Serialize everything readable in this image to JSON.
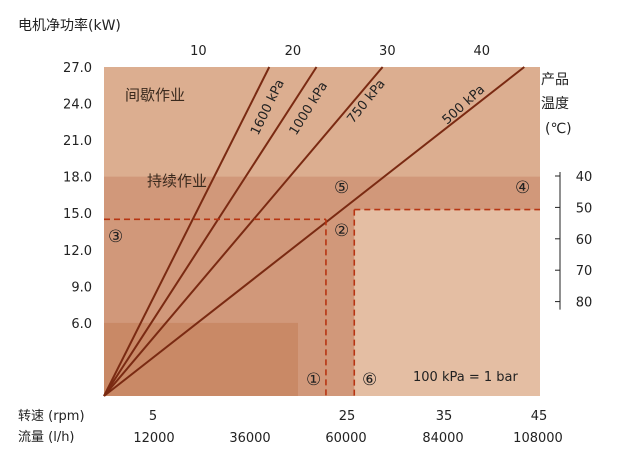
{
  "title": "电机净功率(kW)",
  "right_axis_title": [
    "产品",
    "温度",
    "(℃)"
  ],
  "zones": {
    "intermittent": "间歇作业",
    "continuous": "持续作业"
  },
  "note": "100 kPa = 1 bar",
  "bottom_axes": [
    {
      "label": "转速 (rpm)",
      "ticks": [
        "5",
        "25",
        "35",
        "45"
      ]
    },
    {
      "label": "流量 (l/h)",
      "ticks": [
        "12000",
        "36000",
        "60000",
        "84000",
        "108000"
      ]
    }
  ],
  "markers": [
    "①",
    "②",
    "③",
    "④",
    "⑤",
    "⑥"
  ],
  "colors": {
    "intermittent_zone": "#dcae90",
    "continuous_zone": "#d1987a",
    "low_zone": "#c98966",
    "right_light_zone": "#e4bea3",
    "curve": "#7a2a12",
    "dashed": "#b73412"
  },
  "chart_data": {
    "type": "line",
    "title": "电机净功率(kW)",
    "left_axis": {
      "label": "电机净功率(kW)",
      "ticks": [
        27.0,
        24.0,
        21.0,
        18.0,
        15.0,
        12.0,
        9.0,
        6.0
      ],
      "tick_labels": [
        "27.0",
        "24.0",
        "21.0",
        "18.0",
        "15.0",
        "12.0",
        "9.0",
        "6.0"
      ],
      "ylim": [
        0,
        27
      ]
    },
    "top_axis": {
      "ticks": [
        10,
        20,
        30,
        40
      ],
      "xlim": [
        0,
        45
      ]
    },
    "right_axis": {
      "label": "产品温度(℃)",
      "ticks": [
        40,
        50,
        60,
        70,
        80
      ]
    },
    "series": [
      {
        "name": "1600 kPa",
        "x": [
          0,
          17.5
        ],
        "y": [
          0,
          27
        ]
      },
      {
        "name": "1000 kPa",
        "x": [
          0,
          22.5
        ],
        "y": [
          0,
          27
        ]
      },
      {
        "name": "750 kPa",
        "x": [
          0,
          29.5
        ],
        "y": [
          0,
          27
        ]
      },
      {
        "name": "500 kPa",
        "x": [
          0,
          44.5
        ],
        "y": [
          0,
          27
        ]
      }
    ],
    "reference_lines": {
      "vertical_1": 23.5,
      "vertical_6": 26.5,
      "horizontal_3": 14.5,
      "horizontal_4": 15.3
    },
    "grid": false,
    "legend": "none"
  }
}
